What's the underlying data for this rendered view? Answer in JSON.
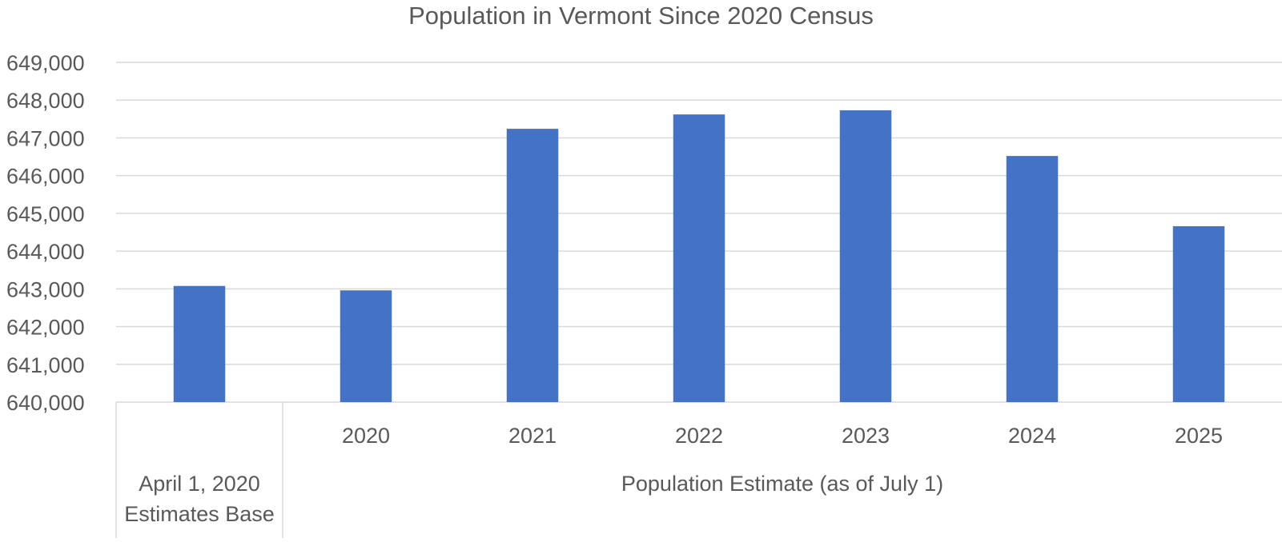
{
  "chart_data": {
    "type": "bar",
    "title": "Population in Vermont Since 2020 Census",
    "groups": [
      {
        "label": "April 1, 2020 Estimates Base",
        "label_lines": [
          "April 1, 2020",
          "Estimates Base"
        ],
        "categories": [
          ""
        ]
      },
      {
        "label": "Population Estimate (as of July 1)",
        "categories": [
          "2020",
          "2021",
          "2022",
          "2023",
          "2024",
          "2025"
        ]
      }
    ],
    "categories": [
      "",
      "2020",
      "2021",
      "2022",
      "2023",
      "2024",
      "2025"
    ],
    "values": [
      643077,
      642960,
      647240,
      647620,
      647730,
      646520,
      644660
    ],
    "ylim": [
      640000,
      649000
    ],
    "yticks": [
      "640,000",
      "641,000",
      "642,000",
      "643,000",
      "644,000",
      "645,000",
      "646,000",
      "647,000",
      "648,000",
      "649,000"
    ],
    "grid": true,
    "legend": "none",
    "colors": {
      "bar": "#4472C4",
      "grid": "#D9D9D9",
      "text": "#595959"
    }
  }
}
